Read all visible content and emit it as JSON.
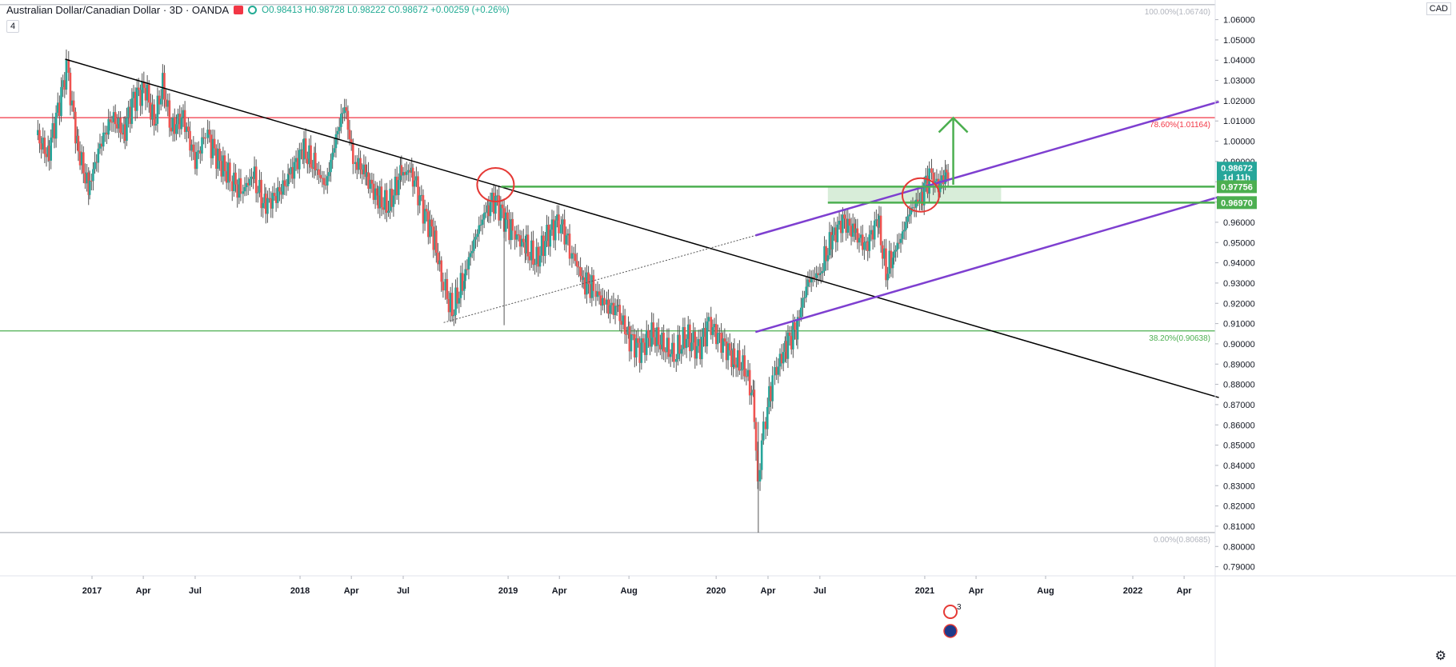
{
  "header": {
    "title": "Australian Dollar/Canadian Dollar · 3D · OANDA",
    "ohlc": "O0.98413 H0.98728 L0.98222 C0.98672 +0.00259 (+0.26%)",
    "interval_badge": "4",
    "currency": "CAD"
  },
  "colors": {
    "up": "#26a69a",
    "down": "#ef5350",
    "wick": "#555555",
    "trendline": "#000000",
    "channel": "#7e3fd0",
    "resistance_red": "#f23645",
    "support_green": "#4caf50",
    "zone_fill": "#c8e6c9",
    "arrow": "#4caf50",
    "circle": "#e53935"
  },
  "chart_data": {
    "type": "candlestick",
    "timeframe": "3D",
    "symbol": "AUDCAD",
    "x_tick_labels": [
      "2017",
      "Apr",
      "Jul",
      "2018",
      "Apr",
      "Jul",
      "2019",
      "Apr",
      "Aug",
      "2020",
      "Apr",
      "Jul",
      "2021",
      "Apr",
      "Aug",
      "2022",
      "Apr"
    ],
    "x_tick_dates": [
      "2017-01-01",
      "2017-04-01",
      "2017-07-01",
      "2018-01-01",
      "2018-04-01",
      "2018-07-01",
      "2019-01-01",
      "2019-04-01",
      "2019-08-01",
      "2020-01-01",
      "2020-04-01",
      "2020-07-01",
      "2021-01-01",
      "2021-04-01",
      "2021-08-01",
      "2022-01-01",
      "2022-04-01"
    ],
    "y_range": [
      0.7855,
      1.0697
    ],
    "y_ticks": [
      0.79,
      0.8,
      0.81,
      0.82,
      0.83,
      0.84,
      0.85,
      0.86,
      0.87,
      0.88,
      0.89,
      0.9,
      0.91,
      0.92,
      0.93,
      0.94,
      0.95,
      0.96,
      0.97,
      0.98,
      0.99,
      1.0,
      1.01,
      1.02,
      1.03,
      1.04,
      1.05,
      1.06
    ],
    "fib_levels": [
      {
        "label": "100.00%(1.06740)",
        "value": 1.0674,
        "color": "#b2b5be"
      },
      {
        "label": "78.60%(1.01164)",
        "value": 1.01164,
        "color": "#f23645"
      },
      {
        "label": "38.20%(0.90638)",
        "value": 0.90638,
        "color": "#4caf50"
      },
      {
        "label": "0.00%(0.80685)",
        "value": 0.80685,
        "color": "#b2b5be"
      }
    ],
    "price_labels": [
      {
        "text": "0.98672",
        "value": 0.98672,
        "bg": "#26a69a"
      },
      {
        "text": "1d 11h",
        "value": 0.9822,
        "bg": "#26a69a"
      },
      {
        "text": "0.97756",
        "value": 0.97756,
        "bg": "#4caf50"
      },
      {
        "text": "0.96970",
        "value": 0.9697,
        "bg": "#4caf50"
      }
    ],
    "zone": {
      "top": 0.97756,
      "bottom": 0.9697,
      "from": "2020-07-15",
      "to": "2021-05-15"
    },
    "trendline": {
      "from": [
        "2016-11-15",
        1.0405
      ],
      "to": [
        "2022-06-01",
        0.8735
      ]
    },
    "channel_upper": {
      "from": [
        "2020-03-10",
        0.9535
      ],
      "to": [
        "2022-06-01",
        1.0195
      ]
    },
    "channel_lower": {
      "from": [
        "2020-03-10",
        0.9058
      ],
      "to": [
        "2022-06-01",
        0.9725
      ]
    },
    "dotted_line": {
      "from": [
        "2018-09-10",
        0.9105
      ],
      "to": [
        "2020-03-10",
        0.9535
      ]
    },
    "green_support_line": {
      "value": 0.97756,
      "from": "2018-12-20",
      "to": "2022-06-01"
    },
    "green_support_line2": {
      "value": 0.9697,
      "from": "2020-07-15",
      "to": "2022-06-01"
    },
    "arrow": {
      "date": "2021-02-20",
      "from": 0.9785,
      "to": 1.0115
    },
    "circles": [
      {
        "date": "2018-12-10",
        "value": 0.9785
      },
      {
        "date": "2020-12-25",
        "value": 0.9735
      }
    ],
    "series": [
      {
        "name": "AUDCAD 3D close",
        "points": [
          [
            "2016-09-25",
            1.003
          ],
          [
            "2016-10-15",
            0.993
          ],
          [
            "2016-11-05",
            1.019
          ],
          [
            "2016-11-18",
            1.036
          ],
          [
            "2016-12-05",
            0.999
          ],
          [
            "2016-12-25",
            0.976
          ],
          [
            "2017-01-15",
            0.998
          ],
          [
            "2017-02-05",
            1.012
          ],
          [
            "2017-02-25",
            1.004
          ],
          [
            "2017-03-15",
            1.021
          ],
          [
            "2017-04-05",
            1.026
          ],
          [
            "2017-04-20",
            1.009
          ],
          [
            "2017-05-05",
            1.028
          ],
          [
            "2017-05-20",
            1.006
          ],
          [
            "2017-06-10",
            1.012
          ],
          [
            "2017-07-01",
            0.99
          ],
          [
            "2017-07-20",
            1.004
          ],
          [
            "2017-08-10",
            0.991
          ],
          [
            "2017-09-01",
            0.982
          ],
          [
            "2017-09-20",
            0.975
          ],
          [
            "2017-10-10",
            0.983
          ],
          [
            "2017-10-30",
            0.968
          ],
          [
            "2017-11-20",
            0.973
          ],
          [
            "2017-12-10",
            0.981
          ],
          [
            "2018-01-05",
            0.996
          ],
          [
            "2018-01-25",
            0.988
          ],
          [
            "2018-02-15",
            0.978
          ],
          [
            "2018-03-05",
            1.002
          ],
          [
            "2018-03-20",
            1.018
          ],
          [
            "2018-04-05",
            0.991
          ],
          [
            "2018-04-25",
            0.984
          ],
          [
            "2018-05-15",
            0.972
          ],
          [
            "2018-06-05",
            0.968
          ],
          [
            "2018-06-25",
            0.983
          ],
          [
            "2018-07-15",
            0.986
          ],
          [
            "2018-08-05",
            0.966
          ],
          [
            "2018-08-25",
            0.951
          ],
          [
            "2018-09-10",
            0.928
          ],
          [
            "2018-09-25",
            0.916
          ],
          [
            "2018-10-15",
            0.933
          ],
          [
            "2018-11-05",
            0.953
          ],
          [
            "2018-11-25",
            0.968
          ],
          [
            "2018-12-10",
            0.971
          ],
          [
            "2018-12-25",
            0.962
          ],
          [
            "2019-01-10",
            0.955
          ],
          [
            "2019-01-30",
            0.948
          ],
          [
            "2019-02-20",
            0.941
          ],
          [
            "2019-03-10",
            0.953
          ],
          [
            "2019-04-01",
            0.961
          ],
          [
            "2019-04-20",
            0.948
          ],
          [
            "2019-05-10",
            0.932
          ],
          [
            "2019-06-01",
            0.927
          ],
          [
            "2019-06-20",
            0.919
          ],
          [
            "2019-07-10",
            0.917
          ],
          [
            "2019-07-30",
            0.904
          ],
          [
            "2019-08-20",
            0.897
          ],
          [
            "2019-09-10",
            0.905
          ],
          [
            "2019-10-01",
            0.899
          ],
          [
            "2019-10-20",
            0.895
          ],
          [
            "2019-11-10",
            0.904
          ],
          [
            "2019-12-01",
            0.897
          ],
          [
            "2019-12-20",
            0.91
          ],
          [
            "2020-01-10",
            0.901
          ],
          [
            "2020-01-30",
            0.893
          ],
          [
            "2020-02-20",
            0.888
          ],
          [
            "2020-03-05",
            0.873
          ],
          [
            "2020-03-15",
            0.834
          ],
          [
            "2020-03-25",
            0.859
          ],
          [
            "2020-04-10",
            0.883
          ],
          [
            "2020-04-30",
            0.898
          ],
          [
            "2020-05-20",
            0.908
          ],
          [
            "2020-06-10",
            0.931
          ],
          [
            "2020-06-30",
            0.935
          ],
          [
            "2020-07-20",
            0.951
          ],
          [
            "2020-08-10",
            0.961
          ],
          [
            "2020-08-30",
            0.955
          ],
          [
            "2020-09-20",
            0.948
          ],
          [
            "2020-10-10",
            0.962
          ],
          [
            "2020-10-25",
            0.935
          ],
          [
            "2020-11-05",
            0.944
          ],
          [
            "2020-11-20",
            0.952
          ],
          [
            "2020-12-05",
            0.965
          ],
          [
            "2020-12-25",
            0.973
          ],
          [
            "2021-01-10",
            0.983
          ],
          [
            "2021-01-25",
            0.978
          ],
          [
            "2021-02-05",
            0.984
          ],
          [
            "2021-02-12",
            0.98672
          ]
        ]
      }
    ],
    "annotation_marker": {
      "text": "3",
      "date": "2021-02-15"
    }
  }
}
